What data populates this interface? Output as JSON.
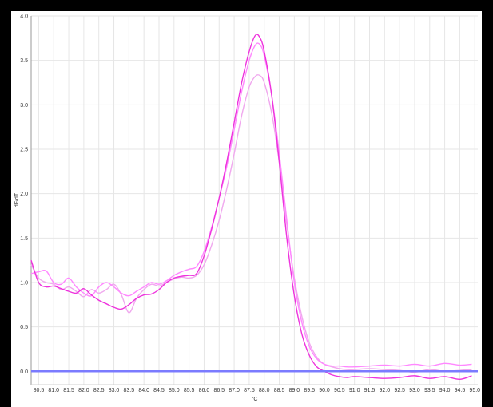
{
  "chart_data": {
    "type": "line",
    "title": "",
    "xlabel": "°C",
    "ylabel": "dF/dT",
    "xlim": [
      80.25,
      95.1
    ],
    "ylim": [
      -0.15,
      4.0
    ],
    "grid": true,
    "x_ticks": [
      "80.5",
      "81.0",
      "81.5",
      "82.0",
      "82.5",
      "83.0",
      "83.5",
      "84.0",
      "84.5",
      "85.0",
      "85.5",
      "86.0",
      "86.5",
      "87.0",
      "87.5",
      "88.0",
      "88.5",
      "89.0",
      "89.5",
      "90.0",
      "90.5",
      "91.0",
      "91.5",
      "92.0",
      "92.5",
      "93.0",
      "93.5",
      "94.0",
      "94.5",
      "95.0"
    ],
    "y_ticks": [
      "0.0",
      "0.5",
      "1.0",
      "1.5",
      "2.0",
      "2.5",
      "3.0",
      "3.5",
      "4.0"
    ],
    "threshold": {
      "y": 0.0,
      "color": "#7b7bff"
    },
    "series": [
      {
        "color": "#ee33dd",
        "x": [
          80.25,
          80.5,
          80.75,
          81.0,
          81.25,
          81.5,
          81.75,
          82.0,
          82.25,
          82.5,
          82.75,
          83.0,
          83.25,
          83.5,
          83.75,
          84.0,
          84.25,
          84.5,
          84.75,
          85.0,
          85.25,
          85.5,
          85.75,
          86.0,
          86.25,
          86.5,
          86.75,
          87.0,
          87.25,
          87.5,
          87.7,
          87.85,
          88.0,
          88.25,
          88.5,
          88.75,
          89.0,
          89.25,
          89.5,
          89.75,
          90.0,
          90.25,
          90.5,
          90.75,
          91.0,
          91.5,
          92.0,
          92.5,
          93.0,
          93.5,
          94.0,
          94.5,
          94.9
        ],
        "y": [
          1.25,
          1.0,
          0.95,
          0.96,
          0.93,
          0.9,
          0.88,
          0.93,
          0.86,
          0.8,
          0.76,
          0.72,
          0.7,
          0.75,
          0.82,
          0.86,
          0.87,
          0.92,
          1.0,
          1.05,
          1.07,
          1.08,
          1.1,
          1.3,
          1.6,
          1.95,
          2.35,
          2.8,
          3.25,
          3.6,
          3.78,
          3.76,
          3.6,
          3.1,
          2.35,
          1.5,
          0.85,
          0.42,
          0.18,
          0.05,
          0.0,
          -0.04,
          -0.06,
          -0.07,
          -0.06,
          -0.07,
          -0.08,
          -0.07,
          -0.05,
          -0.08,
          -0.06,
          -0.09,
          -0.05
        ]
      },
      {
        "color": "#ff88ff",
        "x": [
          80.25,
          80.5,
          80.75,
          81.0,
          81.25,
          81.5,
          81.75,
          82.0,
          82.25,
          82.5,
          82.75,
          83.0,
          83.25,
          83.5,
          83.75,
          84.0,
          84.25,
          84.5,
          84.75,
          85.0,
          85.25,
          85.5,
          85.75,
          86.0,
          86.25,
          86.5,
          86.75,
          87.0,
          87.25,
          87.5,
          87.7,
          87.85,
          88.0,
          88.25,
          88.5,
          88.75,
          89.0,
          89.25,
          89.5,
          89.75,
          90.0,
          90.25,
          90.5,
          90.75,
          91.0,
          91.5,
          92.0,
          92.5,
          93.0,
          93.5,
          94.0,
          94.5,
          94.9
        ],
        "y": [
          1.1,
          1.12,
          1.13,
          1.0,
          0.98,
          1.05,
          0.95,
          0.88,
          0.85,
          0.95,
          1.0,
          0.95,
          0.88,
          0.85,
          0.9,
          0.95,
          1.0,
          0.98,
          1.02,
          1.08,
          1.12,
          1.15,
          1.18,
          1.35,
          1.62,
          1.95,
          2.3,
          2.72,
          3.15,
          3.5,
          3.67,
          3.68,
          3.55,
          3.1,
          2.45,
          1.7,
          1.0,
          0.55,
          0.28,
          0.14,
          0.08,
          0.06,
          0.06,
          0.05,
          0.05,
          0.06,
          0.07,
          0.06,
          0.08,
          0.06,
          0.09,
          0.07,
          0.08
        ]
      },
      {
        "color": "#f0a8ee",
        "x": [
          80.25,
          80.5,
          80.75,
          81.0,
          81.25,
          81.5,
          81.75,
          82.0,
          82.25,
          82.5,
          82.75,
          83.0,
          83.25,
          83.5,
          83.75,
          84.0,
          84.25,
          84.5,
          84.75,
          85.0,
          85.25,
          85.5,
          85.75,
          86.0,
          86.25,
          86.5,
          86.75,
          87.0,
          87.25,
          87.5,
          87.7,
          87.85,
          88.0,
          88.25,
          88.5,
          88.75,
          89.0,
          89.25,
          89.5,
          89.75,
          90.0,
          90.25,
          90.5,
          90.75,
          91.0,
          91.5,
          92.0,
          92.5,
          93.0,
          93.5,
          94.0,
          94.5,
          94.9
        ],
        "y": [
          1.2,
          1.05,
          1.0,
          0.98,
          0.92,
          0.95,
          0.9,
          0.84,
          0.92,
          0.88,
          0.92,
          0.98,
          0.86,
          0.66,
          0.82,
          0.92,
          0.98,
          0.96,
          1.0,
          1.04,
          1.06,
          1.05,
          1.08,
          1.2,
          1.42,
          1.7,
          2.05,
          2.45,
          2.88,
          3.2,
          3.32,
          3.33,
          3.25,
          2.9,
          2.35,
          1.65,
          1.05,
          0.62,
          0.32,
          0.16,
          0.08,
          0.05,
          0.03,
          0.02,
          0.02,
          0.03,
          0.02,
          0.01,
          -0.01,
          0.02,
          0.0,
          0.01,
          0.02
        ]
      }
    ]
  }
}
